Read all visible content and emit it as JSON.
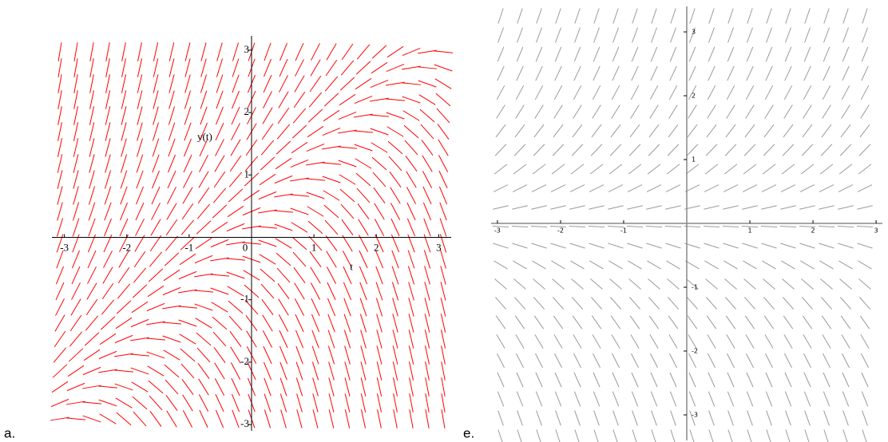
{
  "chart_data": [
    {
      "type": "slope_field",
      "caption": "a.",
      "xlabel": "t",
      "ylabel": "y(t)",
      "origin_label": "0",
      "xlim": [
        -3.2,
        3.2
      ],
      "ylim": [
        -3.1,
        3.1
      ],
      "xticks": [
        -3,
        -2,
        -1,
        1,
        2,
        3
      ],
      "yticks": [
        -3,
        -2,
        -1,
        1,
        2,
        3
      ],
      "color": "#ff0000"
    },
    {
      "type": "slope_field",
      "caption": "e.",
      "xlim": [
        -3.1,
        3.1
      ],
      "ylim": [
        -3.4,
        3.4
      ],
      "xticks": [
        -3,
        -2,
        -1,
        1,
        2,
        3
      ],
      "yticks": [
        -3,
        -2,
        -1,
        1,
        2,
        3
      ],
      "color": "#9a9a9a"
    }
  ]
}
